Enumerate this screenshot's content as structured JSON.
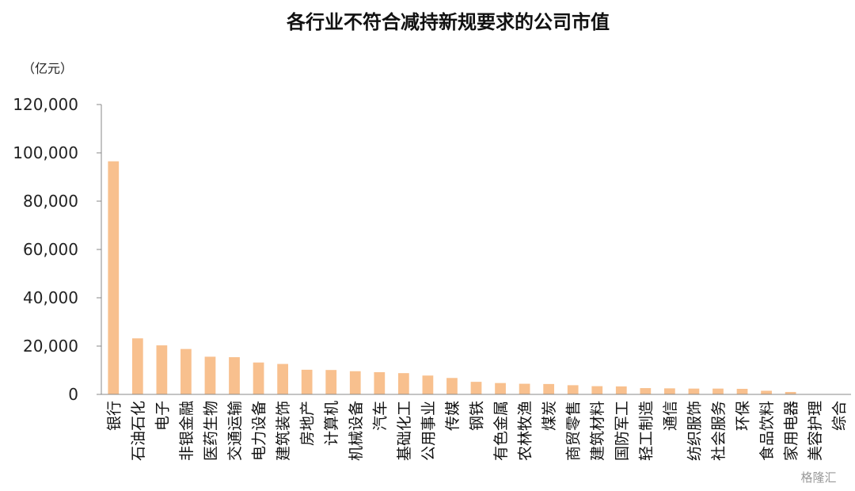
{
  "chart_data": {
    "type": "bar",
    "title": "各行业不符合减持新规要求的公司市值",
    "ylabel": "（亿元）",
    "xlabel": "",
    "ylim": [
      0,
      120000
    ],
    "yticks": [
      "0",
      "20,000",
      "40,000",
      "60,000",
      "80,000",
      "100,000",
      "120,000"
    ],
    "grid": false,
    "bar_color": "#F8C08E",
    "categories": [
      "银行",
      "石油石化",
      "电子",
      "非银金融",
      "医药生物",
      "交通运输",
      "电力设备",
      "建筑装饰",
      "房地产",
      "计算机",
      "机械设备",
      "汽车",
      "基础化工",
      "公用事业",
      "传媒",
      "钢铁",
      "有色金属",
      "农林牧渔",
      "煤炭",
      "商贸零售",
      "建筑材料",
      "国防军工",
      "轻工制造",
      "通信",
      "纺织服饰",
      "社会服务",
      "环保",
      "食品饮料",
      "家用电器",
      "美容护理",
      "综合"
    ],
    "values": [
      96500,
      23200,
      20300,
      18800,
      15600,
      15400,
      13200,
      12600,
      10200,
      10100,
      9600,
      9200,
      8800,
      7800,
      6800,
      5200,
      4700,
      4400,
      4300,
      3800,
      3400,
      3300,
      2600,
      2500,
      2400,
      2400,
      2300,
      1500,
      1000,
      150,
      50
    ]
  },
  "watermark": "格隆汇"
}
